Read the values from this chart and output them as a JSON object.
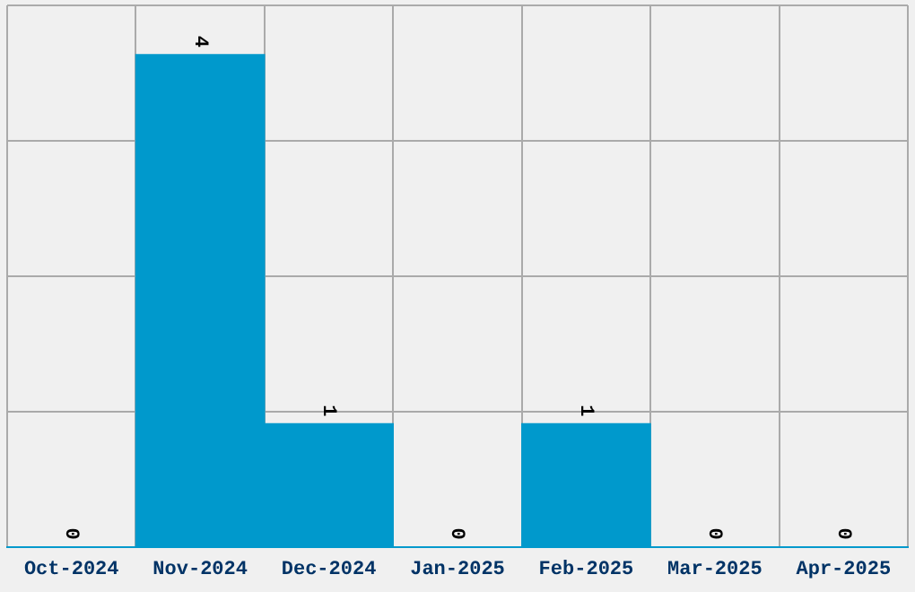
{
  "chart_data": {
    "type": "bar",
    "categories": [
      "Oct-2024",
      "Nov-2024",
      "Dec-2024",
      "Jan-2025",
      "Feb-2025",
      "Mar-2025",
      "Apr-2025"
    ],
    "values": [
      0,
      4,
      1,
      0,
      1,
      0,
      0
    ],
    "color": "#0099cc",
    "ylim": [
      0,
      4.4
    ],
    "yticks": [
      {
        "value": 0,
        "label": null
      },
      {
        "value": 1.1,
        "label": null
      },
      {
        "value": 2.2,
        "label": null
      },
      {
        "value": 3.3,
        "label": null
      },
      {
        "value": 4.4,
        "label": null
      }
    ],
    "tick_labels": "x",
    "grid": true,
    "data_labels": true
  }
}
